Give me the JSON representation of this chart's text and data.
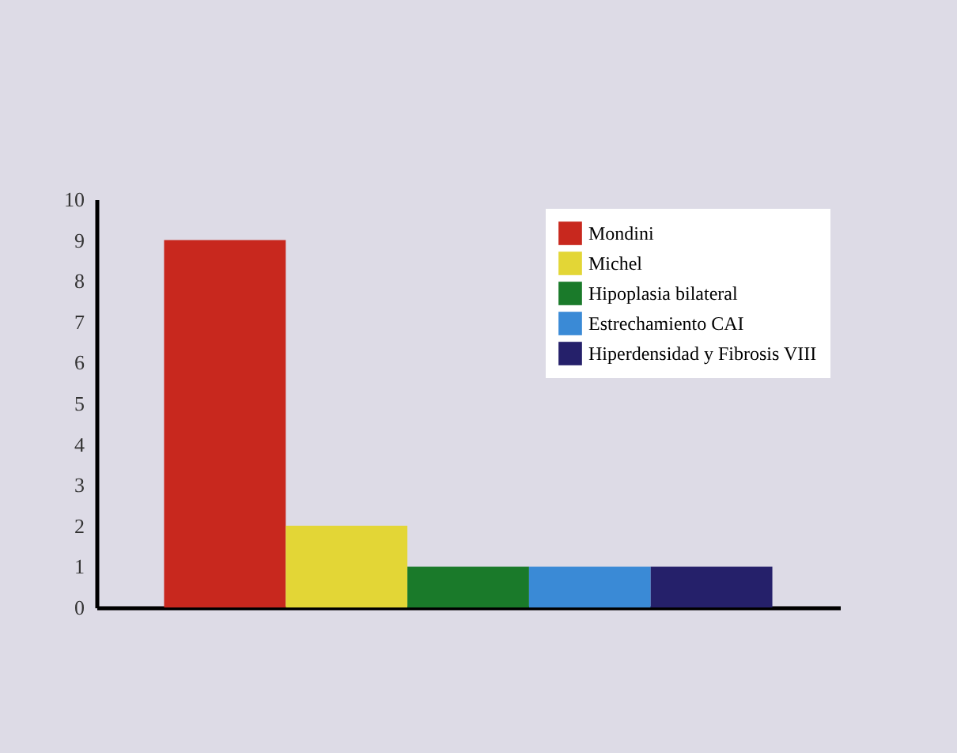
{
  "chart_data": {
    "type": "bar",
    "categories": [
      null
    ],
    "series": [
      {
        "name": "Mondini",
        "color": "#c8281e",
        "values": [
          9
        ]
      },
      {
        "name": "Michel",
        "color": "#e3d636",
        "values": [
          2
        ]
      },
      {
        "name": "Hipoplasia bilateral",
        "color": "#1a7a2a",
        "values": [
          1
        ]
      },
      {
        "name": "Estrechamiento CAI",
        "color": "#3a8ad6",
        "values": [
          1
        ]
      },
      {
        "name": "Hiperdensidad y Fibrosis VIII",
        "color": "#25206a",
        "values": [
          1
        ]
      }
    ],
    "ylim": [
      0,
      10
    ],
    "yticks": [
      0,
      1,
      2,
      3,
      4,
      5,
      6,
      7,
      8,
      9,
      10
    ],
    "grid": false,
    "legend": "top right"
  }
}
